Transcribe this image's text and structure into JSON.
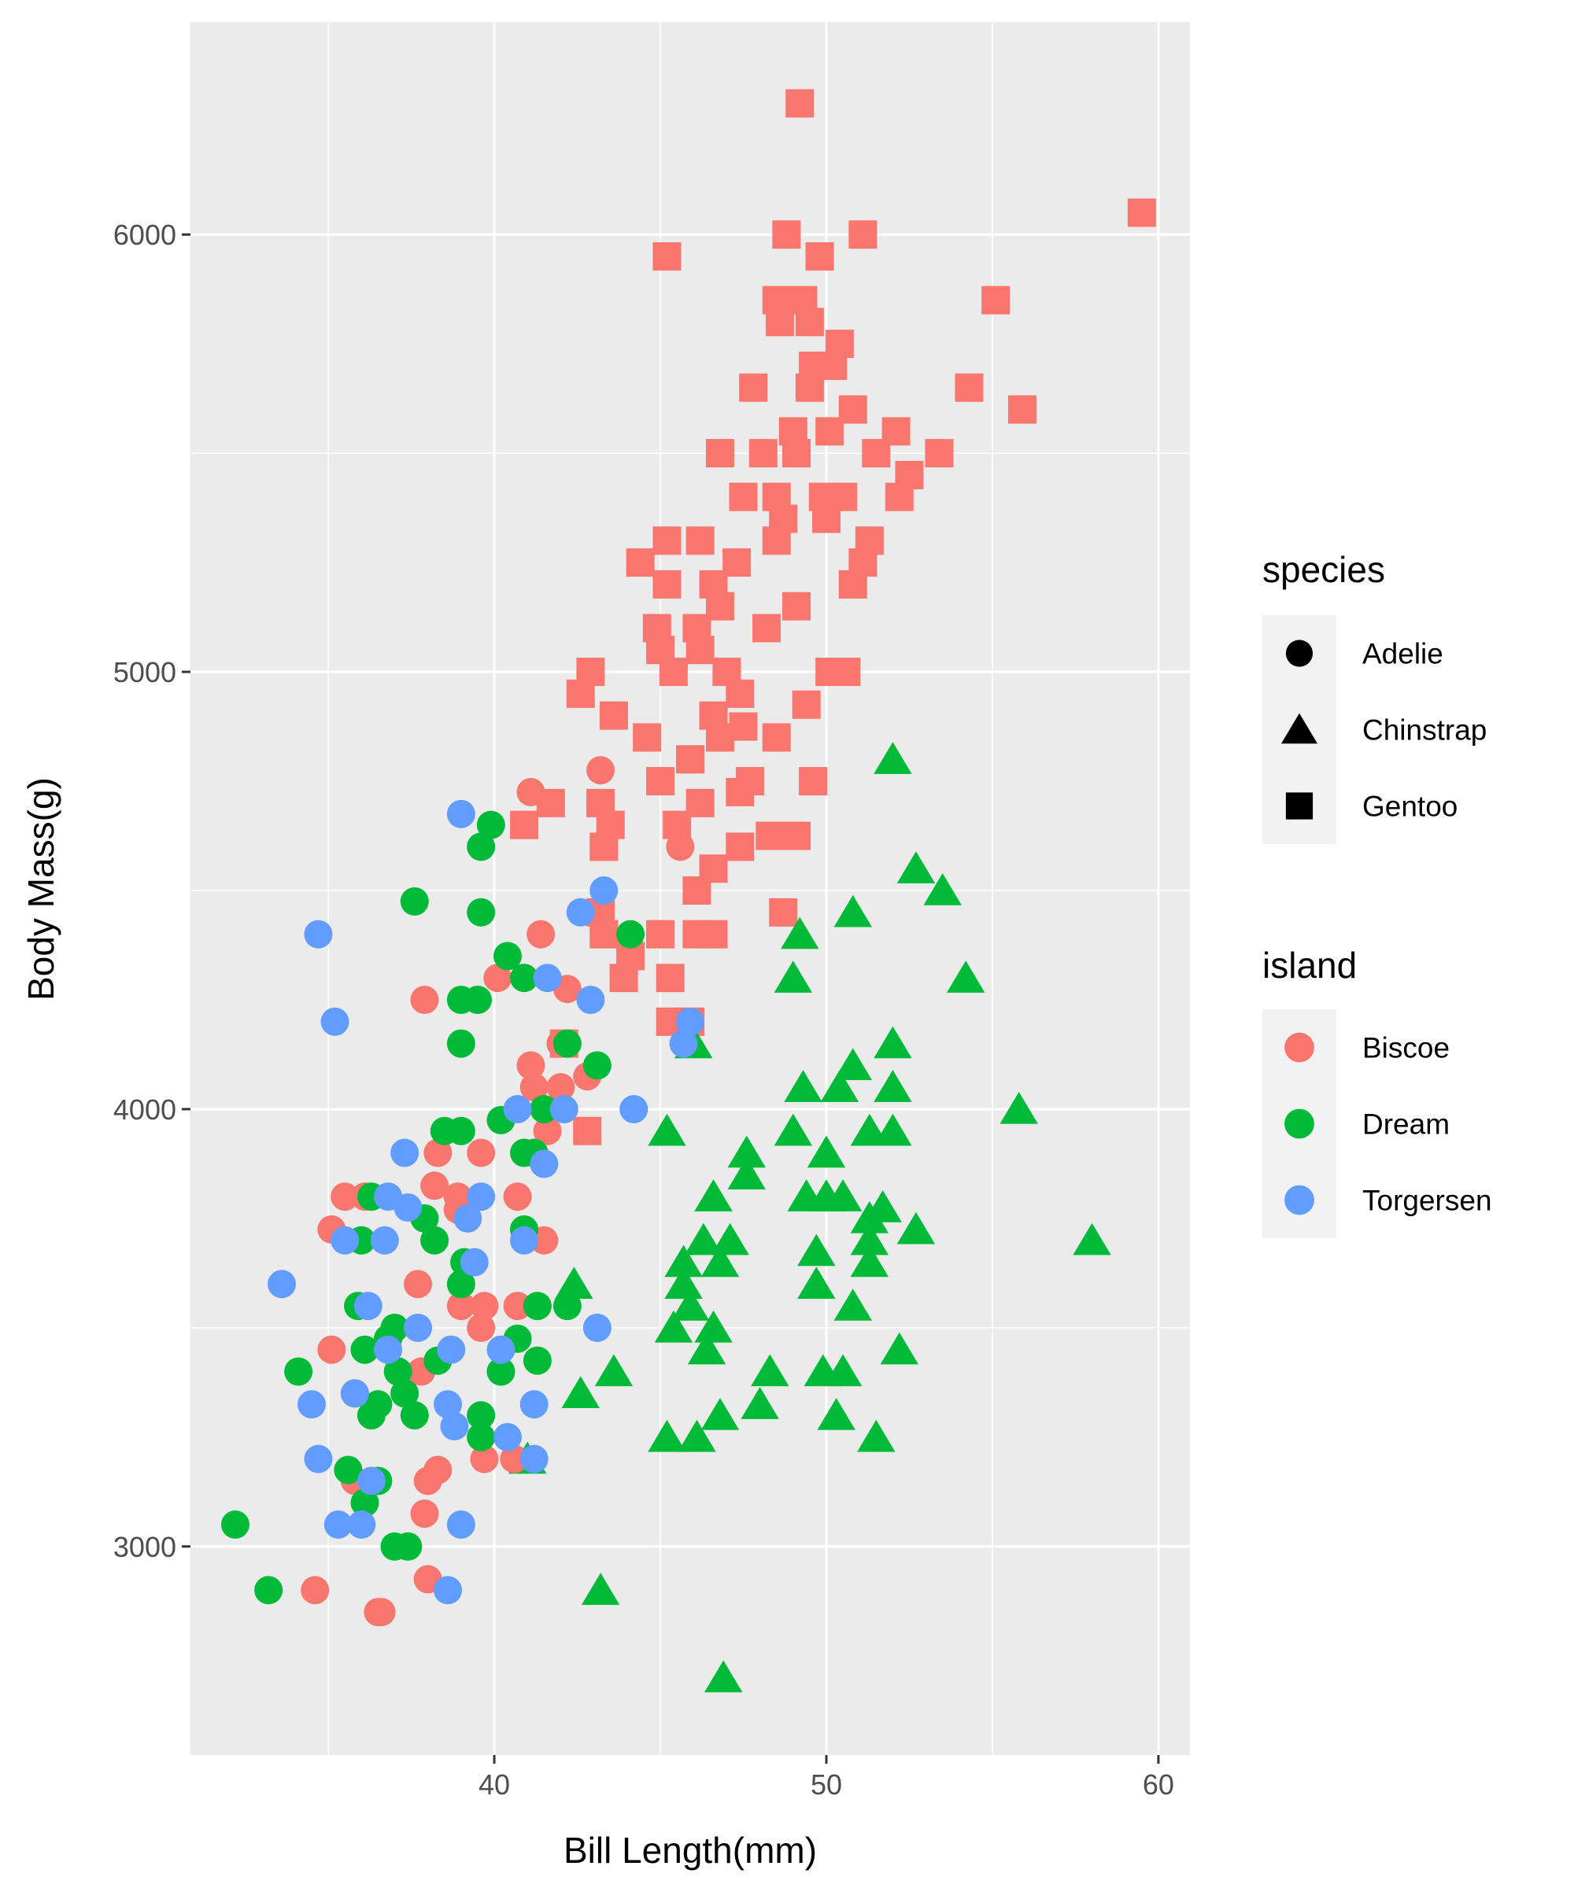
{
  "chart_data": {
    "type": "scatter",
    "xlabel": "Bill Length(mm)",
    "ylabel": "Body Mass(g)",
    "xlim": [
      30.85,
      60.95
    ],
    "ylim": [
      2523,
      6486
    ],
    "x_ticks": [
      40,
      50,
      60
    ],
    "y_ticks": [
      3000,
      4000,
      5000,
      6000
    ],
    "x_tick_labels": [
      "40",
      "50",
      "60"
    ],
    "y_tick_labels": [
      "3000",
      "4000",
      "5000",
      "6000"
    ],
    "grid": true,
    "legend_placement": "right",
    "legend": {
      "shape_title": "species",
      "shape_entries": [
        {
          "label": "Adelie",
          "shape": "circle"
        },
        {
          "label": "Chinstrap",
          "shape": "triangle"
        },
        {
          "label": "Gentoo",
          "shape": "square"
        }
      ],
      "color_title": "island",
      "color_entries": [
        {
          "label": "Biscoe",
          "color": "#F8766D"
        },
        {
          "label": "Dream",
          "color": "#00BA38"
        },
        {
          "label": "Torgersen",
          "color": "#619CFF"
        }
      ]
    },
    "series": [
      {
        "species": "Gentoo",
        "island": "Biscoe",
        "shape": "square",
        "color": "#F8766D",
        "points": [
          [
            49.2,
            6300
          ],
          [
            59.5,
            6050
          ],
          [
            48.8,
            6000
          ],
          [
            51.1,
            6000
          ],
          [
            45.2,
            5950
          ],
          [
            49.8,
            5950
          ],
          [
            55.1,
            5850
          ],
          [
            48.5,
            5850
          ],
          [
            49.3,
            5850
          ],
          [
            48.6,
            5800
          ],
          [
            49.5,
            5800
          ],
          [
            50.4,
            5750
          ],
          [
            49.6,
            5700
          ],
          [
            50.2,
            5700
          ],
          [
            47.8,
            5650
          ],
          [
            49.5,
            5650
          ],
          [
            54.3,
            5650
          ],
          [
            55.9,
            5600
          ],
          [
            50.8,
            5600
          ],
          [
            46.8,
            5500
          ],
          [
            48.1,
            5500
          ],
          [
            49.1,
            5500
          ],
          [
            51.5,
            5500
          ],
          [
            53.4,
            5500
          ],
          [
            49.0,
            5550
          ],
          [
            50.1,
            5550
          ],
          [
            52.1,
            5550
          ],
          [
            47.5,
            5400
          ],
          [
            48.5,
            5400
          ],
          [
            49.9,
            5400
          ],
          [
            50.5,
            5400
          ],
          [
            52.2,
            5400
          ],
          [
            52.5,
            5450
          ],
          [
            48.7,
            5350
          ],
          [
            50.0,
            5350
          ],
          [
            45.2,
            5300
          ],
          [
            46.2,
            5300
          ],
          [
            51.3,
            5300
          ],
          [
            48.5,
            5300
          ],
          [
            44.4,
            5250
          ],
          [
            47.3,
            5250
          ],
          [
            51.1,
            5250
          ],
          [
            45.2,
            5200
          ],
          [
            46.6,
            5200
          ],
          [
            50.8,
            5200
          ],
          [
            46.8,
            5150
          ],
          [
            49.1,
            5150
          ],
          [
            44.9,
            5100
          ],
          [
            46.1,
            5100
          ],
          [
            48.2,
            5100
          ],
          [
            45.0,
            5050
          ],
          [
            46.2,
            5050
          ],
          [
            42.9,
            5000
          ],
          [
            45.4,
            5000
          ],
          [
            47.0,
            5000
          ],
          [
            50.1,
            5000
          ],
          [
            50.6,
            5000
          ],
          [
            42.6,
            4950
          ],
          [
            47.4,
            4950
          ],
          [
            49.4,
            4925
          ],
          [
            43.6,
            4900
          ],
          [
            46.6,
            4900
          ],
          [
            47.5,
            4875
          ],
          [
            44.6,
            4850
          ],
          [
            48.5,
            4850
          ],
          [
            46.8,
            4850
          ],
          [
            45.0,
            4750
          ],
          [
            45.9,
            4800
          ],
          [
            47.7,
            4750
          ],
          [
            49.6,
            4750
          ],
          [
            43.2,
            4700
          ],
          [
            41.7,
            4700
          ],
          [
            46.2,
            4700
          ],
          [
            47.4,
            4725
          ],
          [
            40.9,
            4650
          ],
          [
            43.5,
            4650
          ],
          [
            45.5,
            4650
          ],
          [
            43.3,
            4600
          ],
          [
            47.4,
            4600
          ],
          [
            48.3,
            4625
          ],
          [
            49.1,
            4625
          ],
          [
            46.6,
            4550
          ],
          [
            46.1,
            4500
          ],
          [
            43.2,
            4450
          ],
          [
            48.7,
            4450
          ],
          [
            43.3,
            4400
          ],
          [
            45.0,
            4400
          ],
          [
            46.1,
            4400
          ],
          [
            46.6,
            4400
          ],
          [
            43.9,
            4300
          ],
          [
            45.3,
            4300
          ],
          [
            45.3,
            4200
          ],
          [
            45.9,
            4200
          ],
          [
            42.1,
            4150
          ],
          [
            42.8,
            3950
          ],
          [
            44.1,
            4350
          ]
        ]
      },
      {
        "species": "Chinstrap",
        "island": "Dream",
        "shape": "triangle",
        "color": "#00BA38",
        "points": [
          [
            52.0,
            4800
          ],
          [
            52.7,
            4550
          ],
          [
            53.5,
            4500
          ],
          [
            50.8,
            4450
          ],
          [
            49.2,
            4400
          ],
          [
            49.0,
            4300
          ],
          [
            54.2,
            4300
          ],
          [
            46.0,
            4150
          ],
          [
            52.0,
            4150
          ],
          [
            55.8,
            4000
          ],
          [
            50.8,
            4100
          ],
          [
            49.3,
            4050
          ],
          [
            50.4,
            4050
          ],
          [
            52.0,
            4050
          ],
          [
            45.2,
            3950
          ],
          [
            49.0,
            3950
          ],
          [
            51.3,
            3950
          ],
          [
            52.0,
            3950
          ],
          [
            47.6,
            3900
          ],
          [
            50.0,
            3900
          ],
          [
            47.6,
            3850
          ],
          [
            46.6,
            3800
          ],
          [
            49.4,
            3800
          ],
          [
            50.0,
            3800
          ],
          [
            50.5,
            3800
          ],
          [
            51.7,
            3775
          ],
          [
            51.3,
            3750
          ],
          [
            52.7,
            3725
          ],
          [
            47.1,
            3700
          ],
          [
            46.3,
            3700
          ],
          [
            49.7,
            3675
          ],
          [
            51.3,
            3700
          ],
          [
            58.0,
            3700
          ],
          [
            45.7,
            3650
          ],
          [
            46.8,
            3650
          ],
          [
            51.3,
            3650
          ],
          [
            42.4,
            3600
          ],
          [
            45.7,
            3600
          ],
          [
            49.7,
            3600
          ],
          [
            45.9,
            3550
          ],
          [
            50.8,
            3550
          ],
          [
            45.4,
            3500
          ],
          [
            46.6,
            3500
          ],
          [
            46.4,
            3450
          ],
          [
            52.2,
            3450
          ],
          [
            43.6,
            3400
          ],
          [
            48.3,
            3400
          ],
          [
            49.9,
            3400
          ],
          [
            50.5,
            3400
          ],
          [
            42.6,
            3350
          ],
          [
            48.0,
            3325
          ],
          [
            46.8,
            3300
          ],
          [
            50.3,
            3300
          ],
          [
            45.2,
            3250
          ],
          [
            46.1,
            3250
          ],
          [
            51.5,
            3250
          ],
          [
            41.0,
            3200
          ],
          [
            43.2,
            2900
          ],
          [
            46.9,
            2700
          ]
        ]
      },
      {
        "species": "Adelie",
        "island": "Biscoe",
        "shape": "circle",
        "color": "#F8766D",
        "points": [
          [
            41.1,
            4725
          ],
          [
            43.2,
            4775
          ],
          [
            45.6,
            4600
          ],
          [
            41.4,
            4400
          ],
          [
            40.1,
            4300
          ],
          [
            42.2,
            4275
          ],
          [
            37.9,
            4250
          ],
          [
            41.1,
            4100
          ],
          [
            41.2,
            4050
          ],
          [
            42.0,
            4050
          ],
          [
            42.8,
            4075
          ],
          [
            42.0,
            4150
          ],
          [
            41.6,
            3950
          ],
          [
            38.3,
            3900
          ],
          [
            39.6,
            3900
          ],
          [
            38.2,
            3825
          ],
          [
            35.5,
            3800
          ],
          [
            36.1,
            3800
          ],
          [
            38.9,
            3800
          ],
          [
            40.7,
            3800
          ],
          [
            35.1,
            3725
          ],
          [
            41.5,
            3700
          ],
          [
            37.7,
            3600
          ],
          [
            39.0,
            3550
          ],
          [
            39.7,
            3550
          ],
          [
            40.7,
            3550
          ],
          [
            39.6,
            3500
          ],
          [
            35.1,
            3450
          ],
          [
            37.8,
            3400
          ],
          [
            35.8,
            3350
          ],
          [
            39.7,
            3200
          ],
          [
            40.6,
            3200
          ],
          [
            38.3,
            3175
          ],
          [
            38.0,
            3150
          ],
          [
            37.9,
            3075
          ],
          [
            38.0,
            2925
          ],
          [
            34.6,
            2900
          ],
          [
            36.5,
            2850
          ],
          [
            36.6,
            2850
          ],
          [
            35.8,
            3150
          ],
          [
            38.9,
            3770
          ]
        ]
      },
      {
        "species": "Adelie",
        "island": "Dream",
        "shape": "circle",
        "color": "#00BA38",
        "points": [
          [
            39.9,
            4650
          ],
          [
            39.6,
            4600
          ],
          [
            37.6,
            4475
          ],
          [
            39.6,
            4450
          ],
          [
            44.1,
            4400
          ],
          [
            40.4,
            4350
          ],
          [
            40.9,
            4300
          ],
          [
            39.0,
            4250
          ],
          [
            39.5,
            4250
          ],
          [
            39.0,
            4150
          ],
          [
            42.2,
            4150
          ],
          [
            43.1,
            4100
          ],
          [
            41.5,
            4000
          ],
          [
            40.2,
            3975
          ],
          [
            38.5,
            3950
          ],
          [
            39.0,
            3950
          ],
          [
            40.9,
            3900
          ],
          [
            41.2,
            3900
          ],
          [
            36.3,
            3800
          ],
          [
            37.9,
            3750
          ],
          [
            36.0,
            3700
          ],
          [
            38.2,
            3700
          ],
          [
            40.9,
            3725
          ],
          [
            39.1,
            3650
          ],
          [
            39.0,
            3600
          ],
          [
            35.9,
            3550
          ],
          [
            41.3,
            3550
          ],
          [
            42.2,
            3550
          ],
          [
            37.0,
            3500
          ],
          [
            36.8,
            3475
          ],
          [
            36.1,
            3450
          ],
          [
            40.7,
            3475
          ],
          [
            38.3,
            3425
          ],
          [
            41.3,
            3425
          ],
          [
            34.1,
            3400
          ],
          [
            37.1,
            3400
          ],
          [
            40.2,
            3400
          ],
          [
            37.3,
            3350
          ],
          [
            36.5,
            3325
          ],
          [
            36.3,
            3300
          ],
          [
            37.6,
            3300
          ],
          [
            39.6,
            3300
          ],
          [
            39.6,
            3250
          ],
          [
            35.6,
            3175
          ],
          [
            36.5,
            3150
          ],
          [
            36.1,
            3100
          ],
          [
            32.2,
            3050
          ],
          [
            37.0,
            3000
          ],
          [
            37.4,
            3000
          ],
          [
            33.2,
            2900
          ]
        ]
      },
      {
        "species": "Adelie",
        "island": "Torgersen",
        "shape": "circle",
        "color": "#619CFF",
        "points": [
          [
            39.0,
            4675
          ],
          [
            43.3,
            4500
          ],
          [
            42.6,
            4450
          ],
          [
            34.7,
            4400
          ],
          [
            41.6,
            4300
          ],
          [
            42.9,
            4250
          ],
          [
            35.2,
            4200
          ],
          [
            45.9,
            4200
          ],
          [
            45.7,
            4150
          ],
          [
            44.2,
            4000
          ],
          [
            40.7,
            4000
          ],
          [
            42.1,
            4000
          ],
          [
            37.3,
            3900
          ],
          [
            41.5,
            3875
          ],
          [
            37.4,
            3775
          ],
          [
            36.8,
            3800
          ],
          [
            39.6,
            3800
          ],
          [
            39.2,
            3750
          ],
          [
            35.5,
            3700
          ],
          [
            36.7,
            3700
          ],
          [
            40.9,
            3700
          ],
          [
            39.4,
            3650
          ],
          [
            33.6,
            3600
          ],
          [
            36.2,
            3550
          ],
          [
            37.7,
            3500
          ],
          [
            43.1,
            3500
          ],
          [
            38.7,
            3450
          ],
          [
            40.2,
            3450
          ],
          [
            36.8,
            3450
          ],
          [
            35.8,
            3350
          ],
          [
            34.5,
            3325
          ],
          [
            38.6,
            3325
          ],
          [
            41.2,
            3325
          ],
          [
            38.8,
            3275
          ],
          [
            40.4,
            3250
          ],
          [
            34.7,
            3200
          ],
          [
            41.2,
            3200
          ],
          [
            36.3,
            3150
          ],
          [
            35.3,
            3050
          ],
          [
            36.0,
            3050
          ],
          [
            39.0,
            3050
          ],
          [
            38.6,
            2900
          ]
        ]
      }
    ]
  }
}
